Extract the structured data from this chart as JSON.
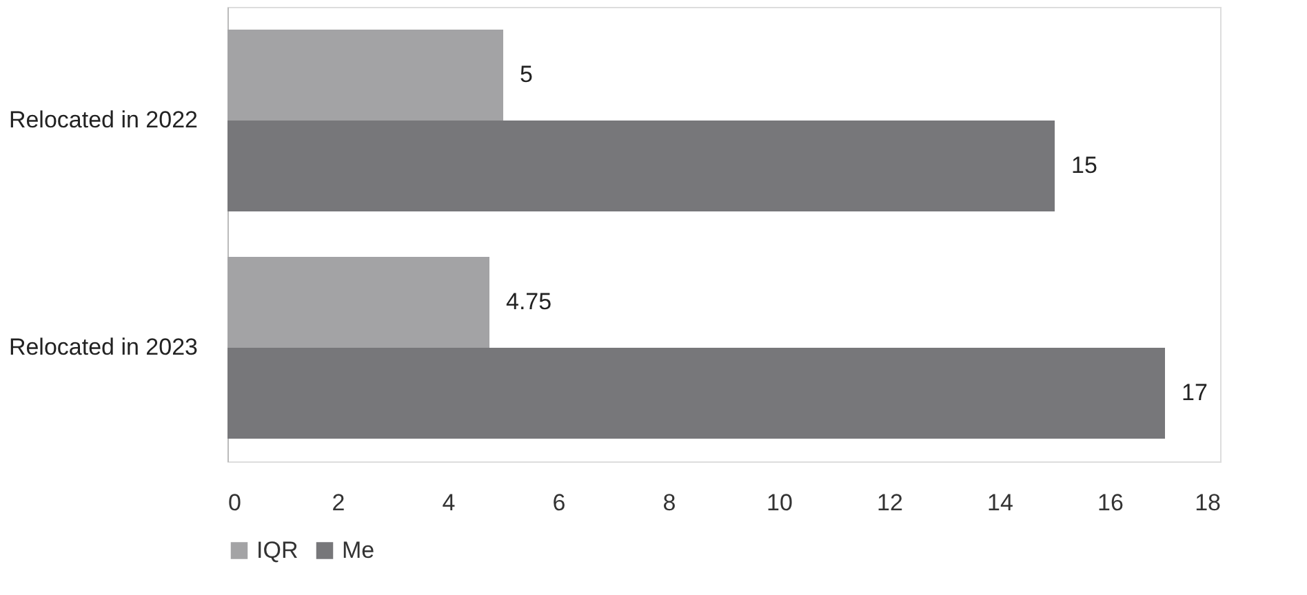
{
  "chart_data": {
    "type": "bar",
    "orientation": "horizontal",
    "categories": [
      "Relocated in 2022",
      "Relocated in 2023"
    ],
    "series": [
      {
        "name": "IQR",
        "color": "#a3a3a5",
        "values": [
          5,
          4.75
        ]
      },
      {
        "name": "Me",
        "color": "#77777a",
        "values": [
          15,
          17
        ]
      }
    ],
    "xlim": [
      0,
      18
    ],
    "xticks": [
      0,
      2,
      4,
      6,
      8,
      10,
      12,
      14,
      16,
      18
    ],
    "grid": false,
    "legend": "bottom",
    "data_labels": true
  }
}
